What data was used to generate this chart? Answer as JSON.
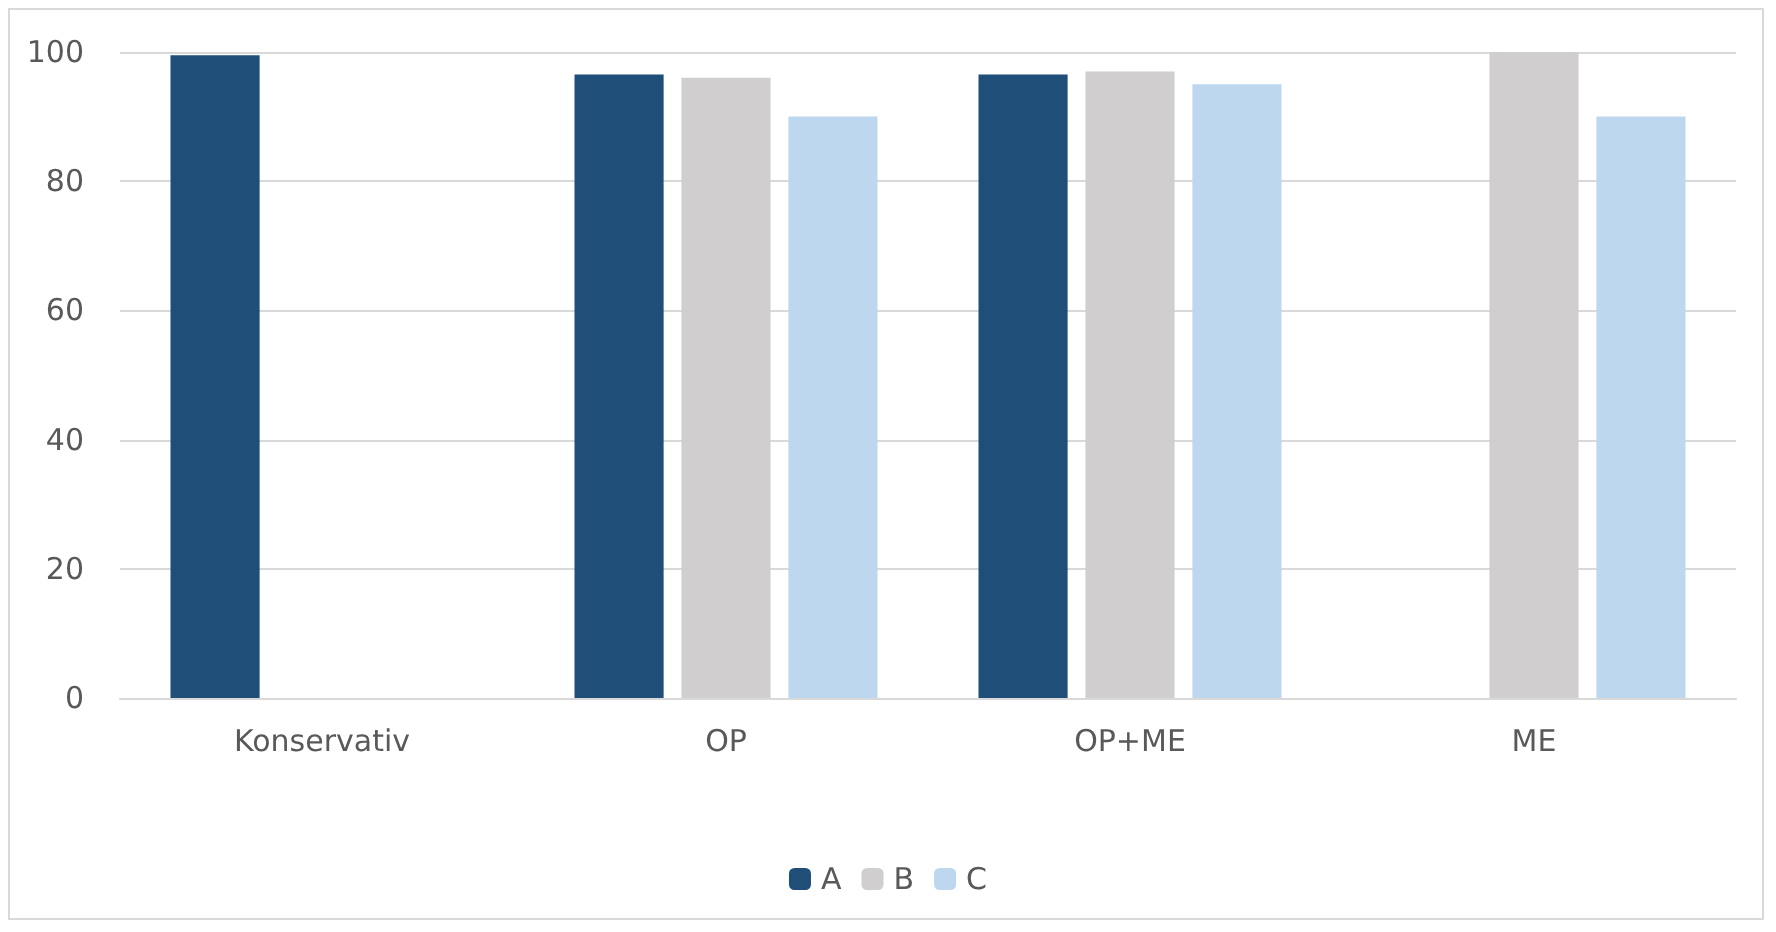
{
  "chart_data": {
    "type": "bar",
    "categories": [
      "Konservativ",
      "OP",
      "OP+ME",
      "ME"
    ],
    "series": [
      {
        "name": "A",
        "color": "#1f4e79",
        "values": [
          99.5,
          96.5,
          96.5,
          null
        ]
      },
      {
        "name": "B",
        "color": "#d0cece",
        "values": [
          null,
          96,
          97,
          100
        ]
      },
      {
        "name": "C",
        "color": "#bdd7ee",
        "values": [
          null,
          90,
          95,
          90
        ]
      }
    ],
    "ylim": [
      0,
      100
    ],
    "yticks": [
      0,
      20,
      40,
      60,
      80,
      100
    ],
    "grid": "y",
    "legend": "bottom"
  }
}
